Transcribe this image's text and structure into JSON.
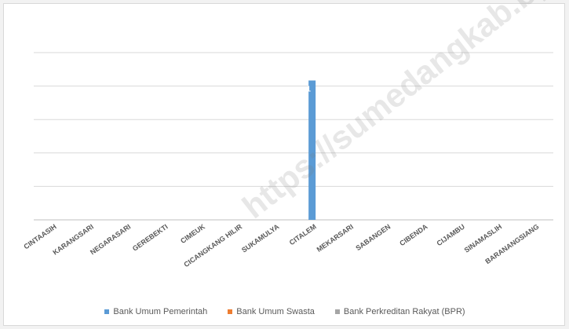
{
  "chart_data": {
    "type": "bar",
    "categories": [
      "CINTAASIH",
      "KARANGSARI",
      "NEGARASARI",
      "GEREBEKTI",
      "CIMEUK",
      "CICANGKANG HILIR",
      "SUKAMULYA",
      "CITALEM",
      "MEKARSARI",
      "SABANGEN",
      "CIBENDA",
      "CIJAMBU",
      "SINAMASLIH",
      "BARANANGSIANG"
    ],
    "series": [
      {
        "name": "Bank Umum Pemerintah",
        "color": "#5b9bd5",
        "values": [
          0,
          0,
          0,
          0,
          0,
          0,
          0,
          1,
          0,
          0,
          0,
          0,
          0,
          0
        ]
      },
      {
        "name": "Bank Umum Swasta",
        "color": "#ed7d31",
        "values": [
          0,
          0,
          0,
          0,
          0,
          0,
          0,
          0,
          0,
          0,
          0,
          0,
          0,
          0
        ]
      },
      {
        "name": "Bank Perkreditan Rakyat (BPR)",
        "color": "#a5a5a5",
        "values": [
          0,
          0,
          0,
          0,
          0,
          0,
          0,
          0,
          0,
          0,
          0,
          0,
          0,
          0
        ]
      }
    ],
    "data_labels": [
      {
        "series": 0,
        "category": "CITALEM",
        "text": "1"
      }
    ],
    "ylim": [
      0,
      1.2
    ],
    "grid": true,
    "legend": "bottom"
  },
  "watermark": "https://sumedangkab.bps.go.id"
}
